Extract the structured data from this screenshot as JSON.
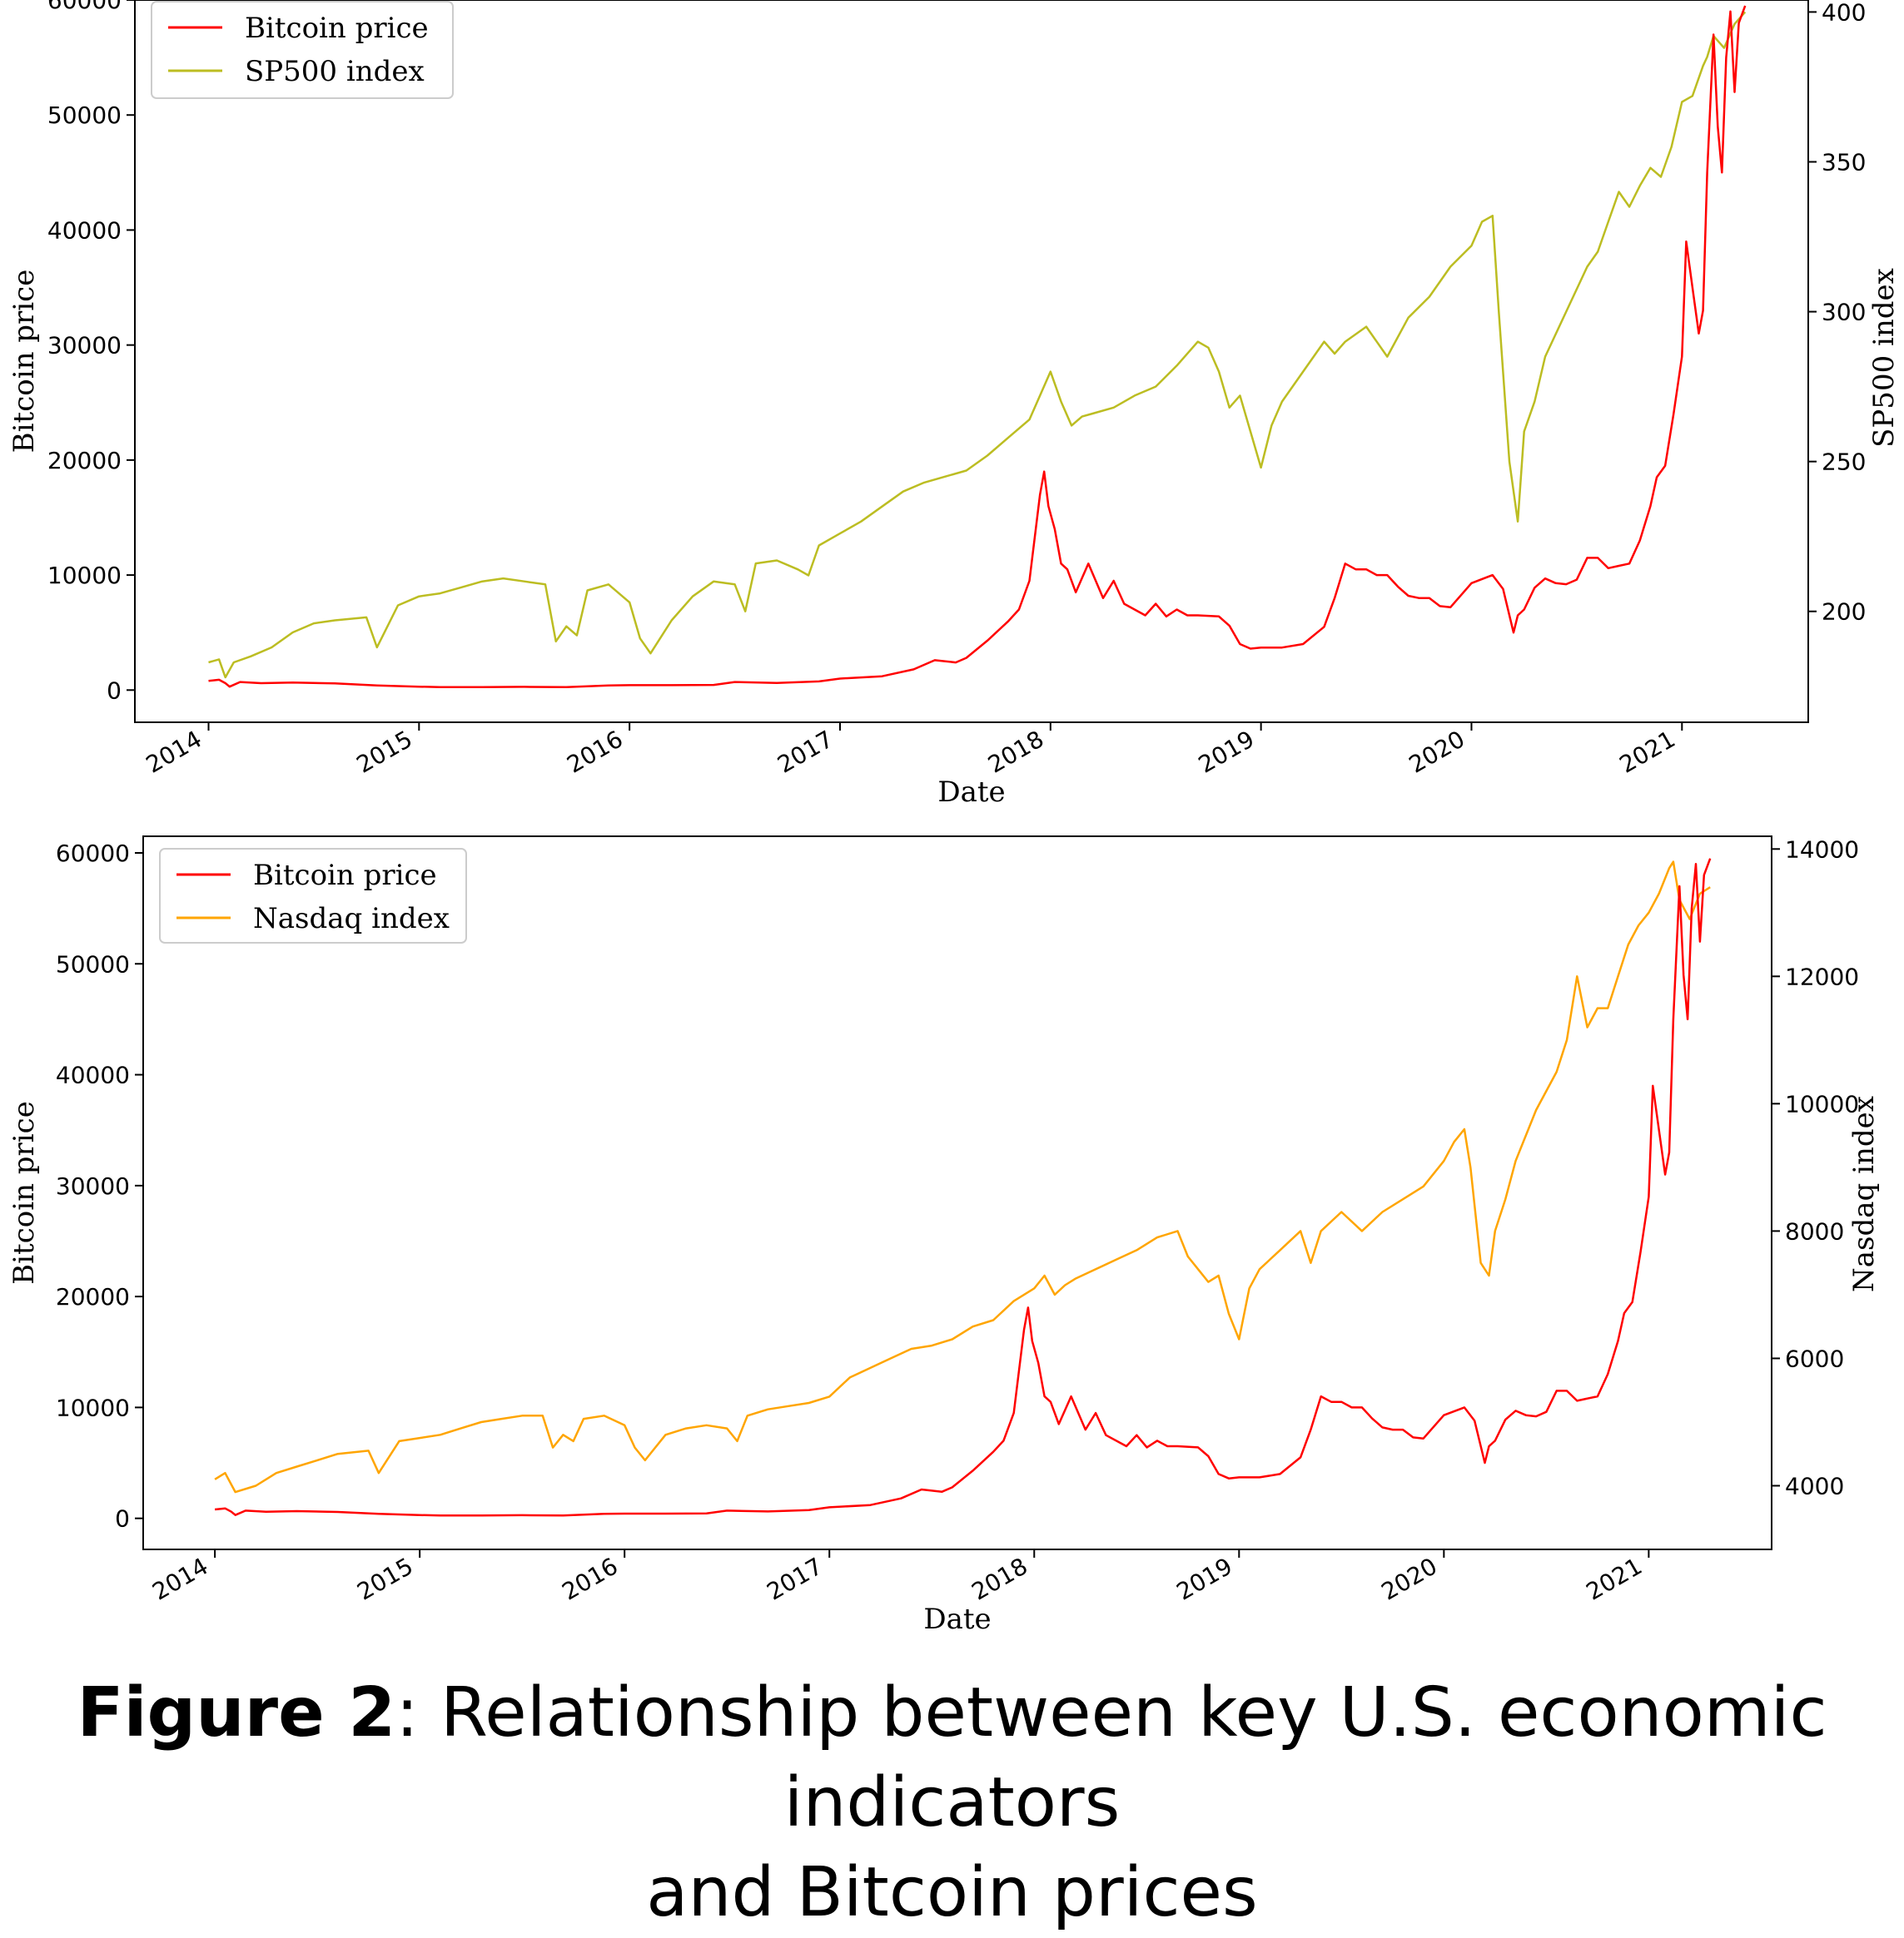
{
  "figure": {
    "label": "Figure 2",
    "caption_line1": ": Relationship between key U.S. economic indicators",
    "caption_line2": "and Bitcoin prices"
  },
  "colors": {
    "bitcoin": "#ff0000",
    "sp500": "#bcbd22",
    "nasdaq": "#ffa500"
  },
  "chart_data": [
    {
      "type": "line",
      "xlabel": "Date",
      "ylabel": "Bitcoin price",
      "y2label": "SP500 index",
      "xlim": [
        2013.65,
        2021.6
      ],
      "ylim": [
        -2800,
        60000
      ],
      "y2lim": [
        163,
        404
      ],
      "xticks": [
        "2014",
        "2015",
        "2016",
        "2017",
        "2018",
        "2019",
        "2020",
        "2021"
      ],
      "yticks": [
        "0",
        "10000",
        "20000",
        "30000",
        "40000",
        "50000",
        "60000"
      ],
      "y2ticks": [
        "200",
        "250",
        "300",
        "350",
        "400"
      ],
      "legend_position": "upper-left",
      "grid": false,
      "series": [
        {
          "name": "Bitcoin price",
          "axis": "left",
          "color": "#ff0000",
          "x": [
            2014.0,
            2014.05,
            2014.08,
            2014.1,
            2014.15,
            2014.25,
            2014.4,
            2014.6,
            2014.8,
            2015.0,
            2015.1,
            2015.3,
            2015.5,
            2015.7,
            2015.9,
            2016.0,
            2016.2,
            2016.4,
            2016.5,
            2016.7,
            2016.9,
            2017.0,
            2017.2,
            2017.35,
            2017.45,
            2017.55,
            2017.6,
            2017.7,
            2017.8,
            2017.85,
            2017.9,
            2017.95,
            2017.97,
            2017.99,
            2018.02,
            2018.05,
            2018.08,
            2018.12,
            2018.18,
            2018.25,
            2018.3,
            2018.35,
            2018.45,
            2018.5,
            2018.55,
            2018.6,
            2018.65,
            2018.7,
            2018.8,
            2018.85,
            2018.9,
            2018.95,
            2019.0,
            2019.1,
            2019.2,
            2019.3,
            2019.35,
            2019.4,
            2019.45,
            2019.5,
            2019.55,
            2019.6,
            2019.65,
            2019.7,
            2019.75,
            2019.8,
            2019.85,
            2019.9,
            2020.0,
            2020.1,
            2020.15,
            2020.2,
            2020.22,
            2020.25,
            2020.3,
            2020.35,
            2020.4,
            2020.45,
            2020.5,
            2020.55,
            2020.6,
            2020.65,
            2020.7,
            2020.75,
            2020.8,
            2020.85,
            2020.88,
            2020.92,
            2020.96,
            2021.0,
            2021.02,
            2021.05,
            2021.08,
            2021.1,
            2021.12,
            2021.15,
            2021.17,
            2021.19,
            2021.21,
            2021.23,
            2021.25,
            2021.27,
            2021.3
          ],
          "y": [
            800,
            900,
            600,
            300,
            700,
            600,
            650,
            580,
            400,
            300,
            250,
            250,
            280,
            250,
            400,
            430,
            430,
            450,
            700,
            620,
            750,
            1000,
            1200,
            1800,
            2600,
            2400,
            2800,
            4300,
            6000,
            7000,
            9500,
            17000,
            19000,
            16000,
            14000,
            11000,
            10500,
            8500,
            11000,
            8000,
            9500,
            7500,
            6500,
            7500,
            6400,
            7000,
            6500,
            6500,
            6400,
            5600,
            4000,
            3600,
            3700,
            3700,
            4000,
            5500,
            8000,
            11000,
            10500,
            10500,
            10000,
            10000,
            9000,
            8200,
            8000,
            8000,
            7300,
            7200,
            9300,
            10000,
            8800,
            5000,
            6500,
            7000,
            8900,
            9700,
            9300,
            9200,
            9600,
            11500,
            11500,
            10600,
            10800,
            11000,
            13000,
            16000,
            18500,
            19500,
            24000,
            29000,
            39000,
            35000,
            31000,
            33000,
            45000,
            57000,
            49000,
            45000,
            55000,
            59000,
            52000,
            58000,
            59500
          ]
        },
        {
          "name": "SP500 index",
          "axis": "right",
          "color": "#bcbd22",
          "x": [
            2014.0,
            2014.05,
            2014.08,
            2014.12,
            2014.2,
            2014.3,
            2014.4,
            2014.5,
            2014.6,
            2014.75,
            2014.8,
            2014.9,
            2015.0,
            2015.1,
            2015.2,
            2015.3,
            2015.4,
            2015.5,
            2015.6,
            2015.65,
            2015.7,
            2015.75,
            2015.8,
            2015.9,
            2016.0,
            2016.05,
            2016.1,
            2016.2,
            2016.3,
            2016.4,
            2016.5,
            2016.55,
            2016.6,
            2016.7,
            2016.8,
            2016.85,
            2016.9,
            2017.0,
            2017.1,
            2017.2,
            2017.3,
            2017.4,
            2017.5,
            2017.6,
            2017.7,
            2017.8,
            2017.9,
            2018.0,
            2018.05,
            2018.1,
            2018.15,
            2018.2,
            2018.3,
            2018.4,
            2018.5,
            2018.6,
            2018.7,
            2018.75,
            2018.8,
            2018.85,
            2018.9,
            2018.95,
            2019.0,
            2019.05,
            2019.1,
            2019.2,
            2019.3,
            2019.35,
            2019.4,
            2019.5,
            2019.6,
            2019.7,
            2019.8,
            2019.9,
            2020.0,
            2020.05,
            2020.1,
            2020.13,
            2020.18,
            2020.22,
            2020.25,
            2020.3,
            2020.35,
            2020.45,
            2020.55,
            2020.6,
            2020.65,
            2020.7,
            2020.75,
            2020.8,
            2020.85,
            2020.9,
            2020.95,
            2021.0,
            2021.05,
            2021.1,
            2021.12,
            2021.15,
            2021.2,
            2021.25,
            2021.3
          ],
          "y": [
            183,
            184,
            178,
            183,
            185,
            188,
            193,
            196,
            197,
            198,
            188,
            202,
            205,
            206,
            208,
            210,
            211,
            210,
            209,
            190,
            195,
            192,
            207,
            209,
            203,
            191,
            186,
            197,
            205,
            210,
            209,
            200,
            216,
            217,
            214,
            212,
            222,
            226,
            230,
            235,
            240,
            243,
            245,
            247,
            252,
            258,
            264,
            280,
            270,
            262,
            265,
            266,
            268,
            272,
            275,
            282,
            290,
            288,
            280,
            268,
            272,
            260,
            248,
            262,
            270,
            280,
            290,
            286,
            290,
            295,
            285,
            298,
            305,
            315,
            322,
            330,
            332,
            300,
            250,
            230,
            260,
            270,
            285,
            300,
            315,
            320,
            330,
            340,
            335,
            342,
            348,
            345,
            355,
            370,
            372,
            382,
            385,
            392,
            388,
            396,
            400
          ]
        }
      ]
    },
    {
      "type": "line",
      "xlabel": "Date",
      "ylabel": "Bitcoin price",
      "y2label": "Nasdaq index",
      "xlim": [
        2013.65,
        2021.6
      ],
      "ylim": [
        -2800,
        61500
      ],
      "y2lim": [
        3000,
        14200
      ],
      "xticks": [
        "2014",
        "2015",
        "2016",
        "2017",
        "2018",
        "2019",
        "2020",
        "2021"
      ],
      "yticks": [
        "0",
        "10000",
        "20000",
        "30000",
        "40000",
        "50000",
        "60000"
      ],
      "y2ticks": [
        "4000",
        "6000",
        "8000",
        "10000",
        "12000",
        "14000"
      ],
      "legend_position": "upper-left",
      "grid": false,
      "series": [
        {
          "name": "Bitcoin price",
          "axis": "left",
          "color": "#ff0000",
          "x": [
            2014.0,
            2014.05,
            2014.08,
            2014.1,
            2014.15,
            2014.25,
            2014.4,
            2014.6,
            2014.8,
            2015.0,
            2015.1,
            2015.3,
            2015.5,
            2015.7,
            2015.9,
            2016.0,
            2016.2,
            2016.4,
            2016.5,
            2016.7,
            2016.9,
            2017.0,
            2017.2,
            2017.35,
            2017.45,
            2017.55,
            2017.6,
            2017.7,
            2017.8,
            2017.85,
            2017.9,
            2017.95,
            2017.97,
            2017.99,
            2018.02,
            2018.05,
            2018.08,
            2018.12,
            2018.18,
            2018.25,
            2018.3,
            2018.35,
            2018.45,
            2018.5,
            2018.55,
            2018.6,
            2018.65,
            2018.7,
            2018.8,
            2018.85,
            2018.9,
            2018.95,
            2019.0,
            2019.1,
            2019.2,
            2019.3,
            2019.35,
            2019.4,
            2019.45,
            2019.5,
            2019.55,
            2019.6,
            2019.65,
            2019.7,
            2019.75,
            2019.8,
            2019.85,
            2019.9,
            2020.0,
            2020.1,
            2020.15,
            2020.2,
            2020.22,
            2020.25,
            2020.3,
            2020.35,
            2020.4,
            2020.45,
            2020.5,
            2020.55,
            2020.6,
            2020.65,
            2020.7,
            2020.75,
            2020.8,
            2020.85,
            2020.88,
            2020.92,
            2020.96,
            2021.0,
            2021.02,
            2021.05,
            2021.08,
            2021.1,
            2021.12,
            2021.15,
            2021.17,
            2021.19,
            2021.21,
            2021.23,
            2021.25,
            2021.27,
            2021.3
          ],
          "y": [
            800,
            900,
            600,
            300,
            700,
            600,
            650,
            580,
            400,
            300,
            250,
            250,
            280,
            250,
            400,
            430,
            430,
            450,
            700,
            620,
            750,
            1000,
            1200,
            1800,
            2600,
            2400,
            2800,
            4300,
            6000,
            7000,
            9500,
            17000,
            19000,
            16000,
            14000,
            11000,
            10500,
            8500,
            11000,
            8000,
            9500,
            7500,
            6500,
            7500,
            6400,
            7000,
            6500,
            6500,
            6400,
            5600,
            4000,
            3600,
            3700,
            3700,
            4000,
            5500,
            8000,
            11000,
            10500,
            10500,
            10000,
            10000,
            9000,
            8200,
            8000,
            8000,
            7300,
            7200,
            9300,
            10000,
            8800,
            5000,
            6500,
            7000,
            8900,
            9700,
            9300,
            9200,
            9600,
            11500,
            11500,
            10600,
            10800,
            11000,
            13000,
            16000,
            18500,
            19500,
            24000,
            29000,
            39000,
            35000,
            31000,
            33000,
            45000,
            57000,
            49000,
            45000,
            55000,
            59000,
            52000,
            58000,
            59500
          ]
        },
        {
          "name": "Nasdaq index",
          "axis": "right",
          "color": "#ffa500",
          "x": [
            2014.0,
            2014.05,
            2014.1,
            2014.2,
            2014.3,
            2014.4,
            2014.5,
            2014.6,
            2014.75,
            2014.8,
            2014.9,
            2015.0,
            2015.1,
            2015.2,
            2015.3,
            2015.4,
            2015.5,
            2015.6,
            2015.65,
            2015.7,
            2015.75,
            2015.8,
            2015.9,
            2016.0,
            2016.05,
            2016.1,
            2016.2,
            2016.3,
            2016.4,
            2016.5,
            2016.55,
            2016.6,
            2016.7,
            2016.8,
            2016.9,
            2017.0,
            2017.1,
            2017.2,
            2017.3,
            2017.4,
            2017.5,
            2017.6,
            2017.7,
            2017.8,
            2017.9,
            2018.0,
            2018.05,
            2018.1,
            2018.15,
            2018.2,
            2018.3,
            2018.4,
            2018.5,
            2018.6,
            2018.7,
            2018.75,
            2018.8,
            2018.85,
            2018.9,
            2018.95,
            2019.0,
            2019.05,
            2019.1,
            2019.2,
            2019.3,
            2019.35,
            2019.4,
            2019.5,
            2019.6,
            2019.7,
            2019.8,
            2019.9,
            2020.0,
            2020.05,
            2020.1,
            2020.13,
            2020.18,
            2020.22,
            2020.25,
            2020.3,
            2020.35,
            2020.45,
            2020.55,
            2020.6,
            2020.65,
            2020.7,
            2020.75,
            2020.8,
            2020.85,
            2020.9,
            2020.95,
            2021.0,
            2021.05,
            2021.1,
            2021.12,
            2021.15,
            2021.2,
            2021.25,
            2021.3
          ],
          "y": [
            4100,
            4200,
            3900,
            4000,
            4200,
            4300,
            4400,
            4500,
            4550,
            4200,
            4700,
            4750,
            4800,
            4900,
            5000,
            5050,
            5100,
            5100,
            4600,
            4800,
            4700,
            5050,
            5100,
            4950,
            4600,
            4400,
            4800,
            4900,
            4950,
            4900,
            4700,
            5100,
            5200,
            5250,
            5300,
            5400,
            5700,
            5850,
            6000,
            6150,
            6200,
            6300,
            6500,
            6600,
            6900,
            7100,
            7300,
            7000,
            7150,
            7250,
            7400,
            7550,
            7700,
            7900,
            8000,
            7600,
            7400,
            7200,
            7300,
            6700,
            6300,
            7100,
            7400,
            7700,
            8000,
            7500,
            8000,
            8300,
            8000,
            8300,
            8500,
            8700,
            9100,
            9400,
            9600,
            9000,
            7500,
            7300,
            8000,
            8500,
            9100,
            9900,
            10500,
            11000,
            12000,
            11200,
            11500,
            11500,
            12000,
            12500,
            12800,
            13000,
            13300,
            13700,
            13800,
            13200,
            12900,
            13300,
            13400
          ]
        }
      ]
    }
  ]
}
